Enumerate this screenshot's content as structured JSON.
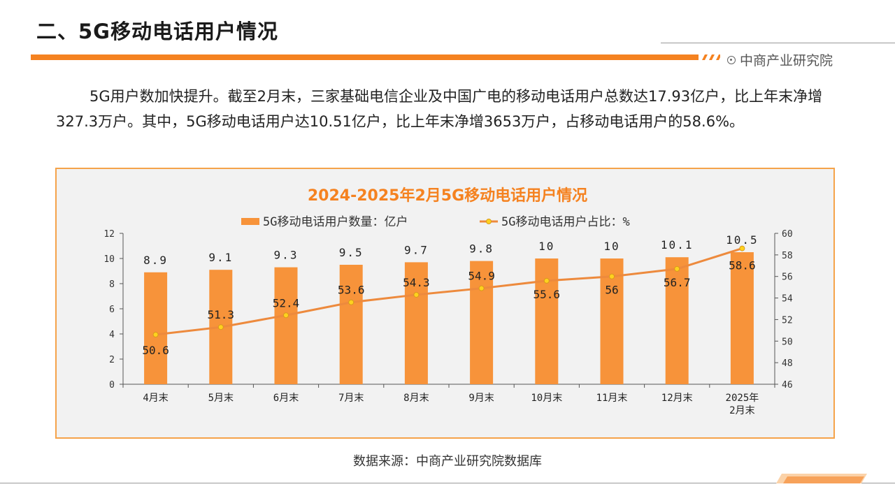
{
  "header": {
    "title": "二、5G移动电话用户情况",
    "brand": "中商产业研究院"
  },
  "intro": {
    "text": "5G用户数加快提升。截至2月末，三家基础电信企业及中国广电的移动电话用户总数达17.93亿户，比上年末净增327.3万户。其中，5G移动电话用户达10.51亿户，比上年末净增3653万户，占移动电话用户的58.6%。"
  },
  "chart_data": {
    "type": "bar",
    "title": "2024-2025年2月5G移动电话用户情况",
    "categories": [
      "4月末",
      "5月末",
      "6月末",
      "7月末",
      "8月末",
      "9月末",
      "10月末",
      "11月末",
      "12月末",
      "2025年\n2月末"
    ],
    "series": [
      {
        "name": "5G移动电话用户数量：亿户",
        "type": "bar",
        "axis": "left",
        "color": "#f7933a",
        "values": [
          8.9,
          9.1,
          9.3,
          9.5,
          9.7,
          9.8,
          10,
          10,
          10.1,
          10.5
        ]
      },
      {
        "name": "5G移动电话用户占比：%",
        "type": "line",
        "axis": "right",
        "color": "#ed8a3d",
        "values": [
          50.6,
          51.3,
          52.4,
          53.6,
          54.3,
          54.9,
          55.6,
          56,
          56.7,
          58.6
        ]
      }
    ],
    "ylim_left": [
      0,
      12
    ],
    "yticks_left": [
      0,
      2,
      4,
      6,
      8,
      10,
      12
    ],
    "ylim_right": [
      46,
      60
    ],
    "yticks_right": [
      46,
      48,
      50,
      52,
      54,
      56,
      58,
      60
    ],
    "legend_position": "top",
    "grid": false
  },
  "footer": {
    "source": "数据来源：中商产业研究院数据库"
  }
}
